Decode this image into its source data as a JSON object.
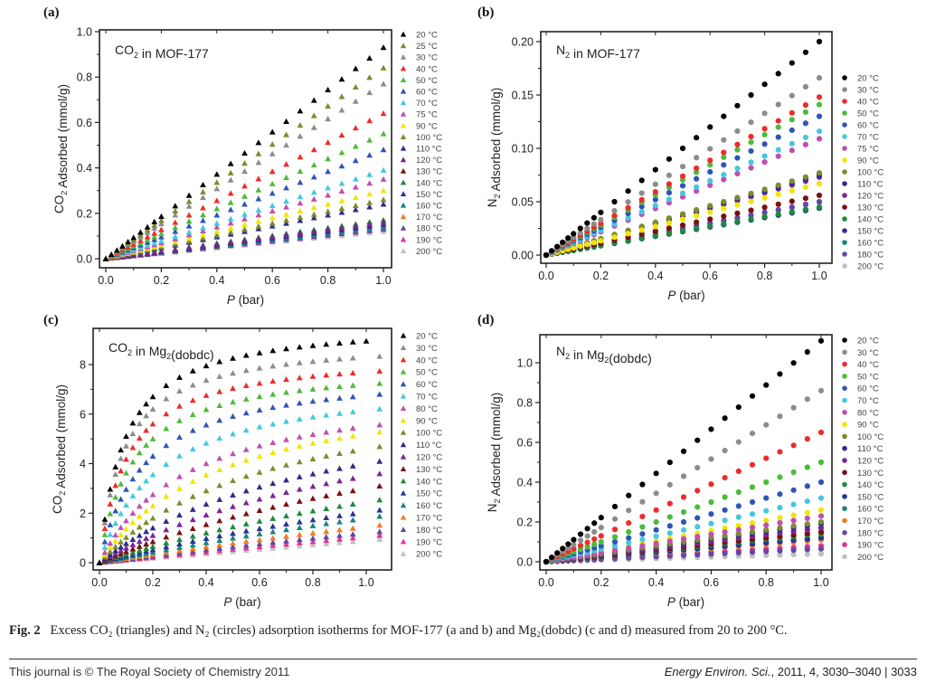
{
  "caption": {
    "fig_label": "Fig. 2",
    "text": "Excess CO₂ (triangles) and N₂ (circles) adsorption isotherms for MOF-177 (a and b) and Mg₂(dobdc) (c and d) measured from 20 to 200 °C."
  },
  "footer": {
    "left": "This journal is © The Royal Society of Chemistry 2011",
    "journal": "Energy Environ. Sci.",
    "citation": ", 2011, 4, 3030–3040",
    "separator": "|",
    "page": "3033"
  },
  "colors": {
    "20": "#000000",
    "25": "#7d8a2e",
    "30": "#8c8c8c",
    "40": "#ee2b2b",
    "50": "#4dbb3a",
    "60": "#2f55b5",
    "70": "#44c8e0",
    "75": "#c04fb0",
    "80": "#c04fb0",
    "90": "#f2e600",
    "100": "#7d8a2e",
    "110": "#2e2d8a",
    "120": "#7b2496",
    "130": "#7a1010",
    "140": "#1e8a3c",
    "150": "#26339a",
    "160": "#15857f",
    "170": "#f07d22",
    "180": "#6247a8",
    "190": "#e8308f",
    "200": "#c0c0c0"
  },
  "chart_data": [
    {
      "id": "a",
      "panel_label": "(a)",
      "type": "scatter",
      "marker": "triangle",
      "inset_title": "CO2 in MOF-177",
      "xlabel": "P (bar)",
      "ylabel": "CO2 Adsorbed (mmol/g)",
      "xlim": [
        0,
        1.0
      ],
      "ylim": [
        0,
        1.0
      ],
      "xticks": [
        "0.0",
        "0.2",
        "0.4",
        "0.6",
        "0.8",
        "1.0"
      ],
      "yticks": [
        "0.0",
        "0.2",
        "0.4",
        "0.6",
        "0.8",
        "1.0"
      ],
      "legend": "right",
      "series": [
        {
          "name": "20 °C",
          "t": "20",
          "y_at_1bar": 0.93
        },
        {
          "name": "25 °C",
          "t": "25",
          "y_at_1bar": 0.84
        },
        {
          "name": "30 °C",
          "t": "30",
          "y_at_1bar": 0.77
        },
        {
          "name": "40 °C",
          "t": "40",
          "y_at_1bar": 0.64
        },
        {
          "name": "50 °C",
          "t": "50",
          "y_at_1bar": 0.55
        },
        {
          "name": "60 °C",
          "t": "60",
          "y_at_1bar": 0.48
        },
        {
          "name": "70 °C",
          "t": "70",
          "y_at_1bar": 0.39
        },
        {
          "name": "75 °C",
          "t": "75",
          "y_at_1bar": 0.35
        },
        {
          "name": "90 °C",
          "t": "90",
          "y_at_1bar": 0.3
        },
        {
          "name": "100 °C",
          "t": "100",
          "y_at_1bar": 0.26
        },
        {
          "name": "110 °C",
          "t": "110",
          "y_at_1bar": 0.24
        },
        {
          "name": "120 °C",
          "t": "120",
          "y_at_1bar": 0.16
        },
        {
          "name": "130 °C",
          "t": "130",
          "y_at_1bar": 0.16
        },
        {
          "name": "140 °C",
          "t": "140",
          "y_at_1bar": 0.17
        },
        {
          "name": "150 °C",
          "t": "150",
          "y_at_1bar": 0.15
        },
        {
          "name": "160 °C",
          "t": "160",
          "y_at_1bar": 0.14
        },
        {
          "name": "170 °C",
          "t": "170",
          "y_at_1bar": 0.14
        },
        {
          "name": "180 °C",
          "t": "180",
          "y_at_1bar": 0.13
        },
        {
          "name": "190 °C",
          "t": "190",
          "y_at_1bar": 0.13
        },
        {
          "name": "200 °C",
          "t": "200",
          "y_at_1bar": 0.12
        }
      ]
    },
    {
      "id": "b",
      "panel_label": "(b)",
      "type": "scatter",
      "marker": "circle",
      "inset_title": "N2 in MOF-177",
      "xlabel": "P (bar)",
      "ylabel": "N2 Adsorbed (mmol/g)",
      "xlim": [
        0,
        1.0
      ],
      "ylim": [
        0,
        0.2
      ],
      "xticks": [
        "0.0",
        "0.2",
        "0.4",
        "0.6",
        "0.8",
        "1.0"
      ],
      "yticks": [
        "0.00",
        "0.05",
        "0.10",
        "0.15",
        "0.20"
      ],
      "legend": "right",
      "series": [
        {
          "name": "20 °C",
          "t": "20",
          "y_at_1bar": 0.2
        },
        {
          "name": "30 °C",
          "t": "30",
          "y_at_1bar": 0.166
        },
        {
          "name": "40 °C",
          "t": "40",
          "y_at_1bar": 0.148
        },
        {
          "name": "50 °C",
          "t": "50",
          "y_at_1bar": 0.141
        },
        {
          "name": "60 °C",
          "t": "60",
          "y_at_1bar": 0.13
        },
        {
          "name": "70 °C",
          "t": "70",
          "y_at_1bar": 0.116
        },
        {
          "name": "75 °C",
          "t": "75",
          "y_at_1bar": 0.109
        },
        {
          "name": "90 °C",
          "t": "90",
          "y_at_1bar": 0.067
        },
        {
          "name": "100 °C",
          "t": "100",
          "y_at_1bar": 0.077
        },
        {
          "name": "110 °C",
          "t": "110",
          "y_at_1bar": 0.075
        },
        {
          "name": "120 °C",
          "t": "120",
          "y_at_1bar": 0.073
        },
        {
          "name": "130 °C",
          "t": "130",
          "y_at_1bar": 0.056
        },
        {
          "name": "140 °C",
          "t": "140",
          "y_at_1bar": 0.045
        },
        {
          "name": "150 °C",
          "t": "150",
          "y_at_1bar": 0.044
        },
        {
          "name": "160 °C",
          "t": "160",
          "y_at_1bar": 0.044
        },
        {
          "name": "180 °C",
          "t": "180",
          "y_at_1bar": 0.05
        },
        {
          "name": "200 °C",
          "t": "200",
          "y_at_1bar": 0.049
        }
      ]
    },
    {
      "id": "c",
      "panel_label": "(c)",
      "type": "scatter",
      "marker": "triangle",
      "inset_title": "CO2 in Mg2(dobdc)",
      "xlabel": "P (bar)",
      "ylabel": "CO2 Adsorbed (mmol/g)",
      "xlim": [
        0,
        1.05
      ],
      "ylim": [
        0,
        9
      ],
      "xticks": [
        "0.0",
        "0.2",
        "0.4",
        "0.6",
        "0.8",
        "1.0"
      ],
      "yticks": [
        "0",
        "2",
        "4",
        "6",
        "8"
      ],
      "legend": "right",
      "series": [
        {
          "name": "20 °C",
          "t": "20",
          "y_at_1bar": 8.95,
          "y_at_0_2bar": 6.7
        },
        {
          "name": "30 °C",
          "t": "30",
          "y_at_1bar": 8.3,
          "y_at_0_2bar": 6.2
        },
        {
          "name": "40 °C",
          "t": "40",
          "y_at_1bar": 7.7,
          "y_at_0_2bar": 5.6
        },
        {
          "name": "50 °C",
          "t": "50",
          "y_at_1bar": 7.2,
          "y_at_0_2bar": 5.0
        },
        {
          "name": "60 °C",
          "t": "60",
          "y_at_1bar": 6.75,
          "y_at_0_2bar": 4.3
        },
        {
          "name": "70 °C",
          "t": "70",
          "y_at_1bar": 6.15,
          "y_at_0_2bar": 3.55
        },
        {
          "name": "80 °C",
          "t": "80",
          "y_at_1bar": 5.5,
          "y_at_0_2bar": 2.75
        },
        {
          "name": "90 °C",
          "t": "90",
          "y_at_1bar": 5.2,
          "y_at_0_2bar": 2.3
        },
        {
          "name": "100 °C",
          "t": "100",
          "y_at_1bar": 4.6,
          "y_at_0_2bar": 1.8
        },
        {
          "name": "110 °C",
          "t": "110",
          "y_at_1bar": 4.0,
          "y_at_0_2bar": 1.4
        },
        {
          "name": "120 °C",
          "t": "120",
          "y_at_1bar": 3.5,
          "y_at_0_2bar": 1.1
        },
        {
          "name": "130 °C",
          "t": "130",
          "y_at_1bar": 3.0,
          "y_at_0_2bar": 0.85
        },
        {
          "name": "140 °C",
          "t": "140",
          "y_at_1bar": 2.45,
          "y_at_0_2bar": 0.65
        },
        {
          "name": "150 °C",
          "t": "150",
          "y_at_1bar": 2.05,
          "y_at_0_2bar": 0.52
        },
        {
          "name": "160 °C",
          "t": "160",
          "y_at_1bar": 1.8,
          "y_at_0_2bar": 0.42
        },
        {
          "name": "170 °C",
          "t": "170",
          "y_at_1bar": 1.45,
          "y_at_0_2bar": 0.33
        },
        {
          "name": "180 °C",
          "t": "180",
          "y_at_1bar": 1.2,
          "y_at_0_2bar": 0.27
        },
        {
          "name": "190 °C",
          "t": "190",
          "y_at_1bar": 1.05,
          "y_at_0_2bar": 0.22
        },
        {
          "name": "200 °C",
          "t": "200",
          "y_at_1bar": 0.9,
          "y_at_0_2bar": 0.18
        }
      ]
    },
    {
      "id": "d",
      "panel_label": "(d)",
      "type": "scatter",
      "marker": "circle",
      "inset_title": "N2 in Mg2(dobdc)",
      "xlabel": "P (bar)",
      "ylabel": "N2 Adsorbed (mmol/g)",
      "xlim": [
        0,
        1.0
      ],
      "ylim": [
        0,
        1.1
      ],
      "xticks": [
        "0.0",
        "0.2",
        "0.4",
        "0.6",
        "0.8",
        "1.0"
      ],
      "yticks": [
        "0.0",
        "0.2",
        "0.4",
        "0.6",
        "0.8",
        "1.0"
      ],
      "legend": "right",
      "series": [
        {
          "name": "20 °C",
          "t": "20",
          "y_at_1bar": 1.11
        },
        {
          "name": "30 °C",
          "t": "30",
          "y_at_1bar": 0.86
        },
        {
          "name": "40 °C",
          "t": "40",
          "y_at_1bar": 0.65
        },
        {
          "name": "50 °C",
          "t": "50",
          "y_at_1bar": 0.5
        },
        {
          "name": "60 °C",
          "t": "60",
          "y_at_1bar": 0.4
        },
        {
          "name": "70 °C",
          "t": "70",
          "y_at_1bar": 0.32
        },
        {
          "name": "80 °C",
          "t": "80",
          "y_at_1bar": 0.23
        },
        {
          "name": "90 °C",
          "t": "90",
          "y_at_1bar": 0.26
        },
        {
          "name": "100 °C",
          "t": "100",
          "y_at_1bar": 0.2
        },
        {
          "name": "110 °C",
          "t": "110",
          "y_at_1bar": 0.19
        },
        {
          "name": "120 °C",
          "t": "120",
          "y_at_1bar": 0.17
        },
        {
          "name": "130 °C",
          "t": "130",
          "y_at_1bar": 0.15
        },
        {
          "name": "140 °C",
          "t": "140",
          "y_at_1bar": 0.14
        },
        {
          "name": "150 °C",
          "t": "150",
          "y_at_1bar": 0.12
        },
        {
          "name": "160 °C",
          "t": "160",
          "y_at_1bar": 0.12
        },
        {
          "name": "170 °C",
          "t": "170",
          "y_at_1bar": 0.11
        },
        {
          "name": "180 °C",
          "t": "180",
          "y_at_1bar": 0.065
        },
        {
          "name": "190 °C",
          "t": "190",
          "y_at_1bar": 0.08
        },
        {
          "name": "200 °C",
          "t": "200",
          "y_at_1bar": 0.04
        }
      ]
    }
  ],
  "pressure_points": [
    0,
    0.02,
    0.04,
    0.06,
    0.08,
    0.1,
    0.125,
    0.15,
    0.175,
    0.2,
    0.25,
    0.3,
    0.35,
    0.4,
    0.45,
    0.5,
    0.55,
    0.6,
    0.65,
    0.7,
    0.75,
    0.8,
    0.85,
    0.9,
    0.95,
    1.0
  ]
}
